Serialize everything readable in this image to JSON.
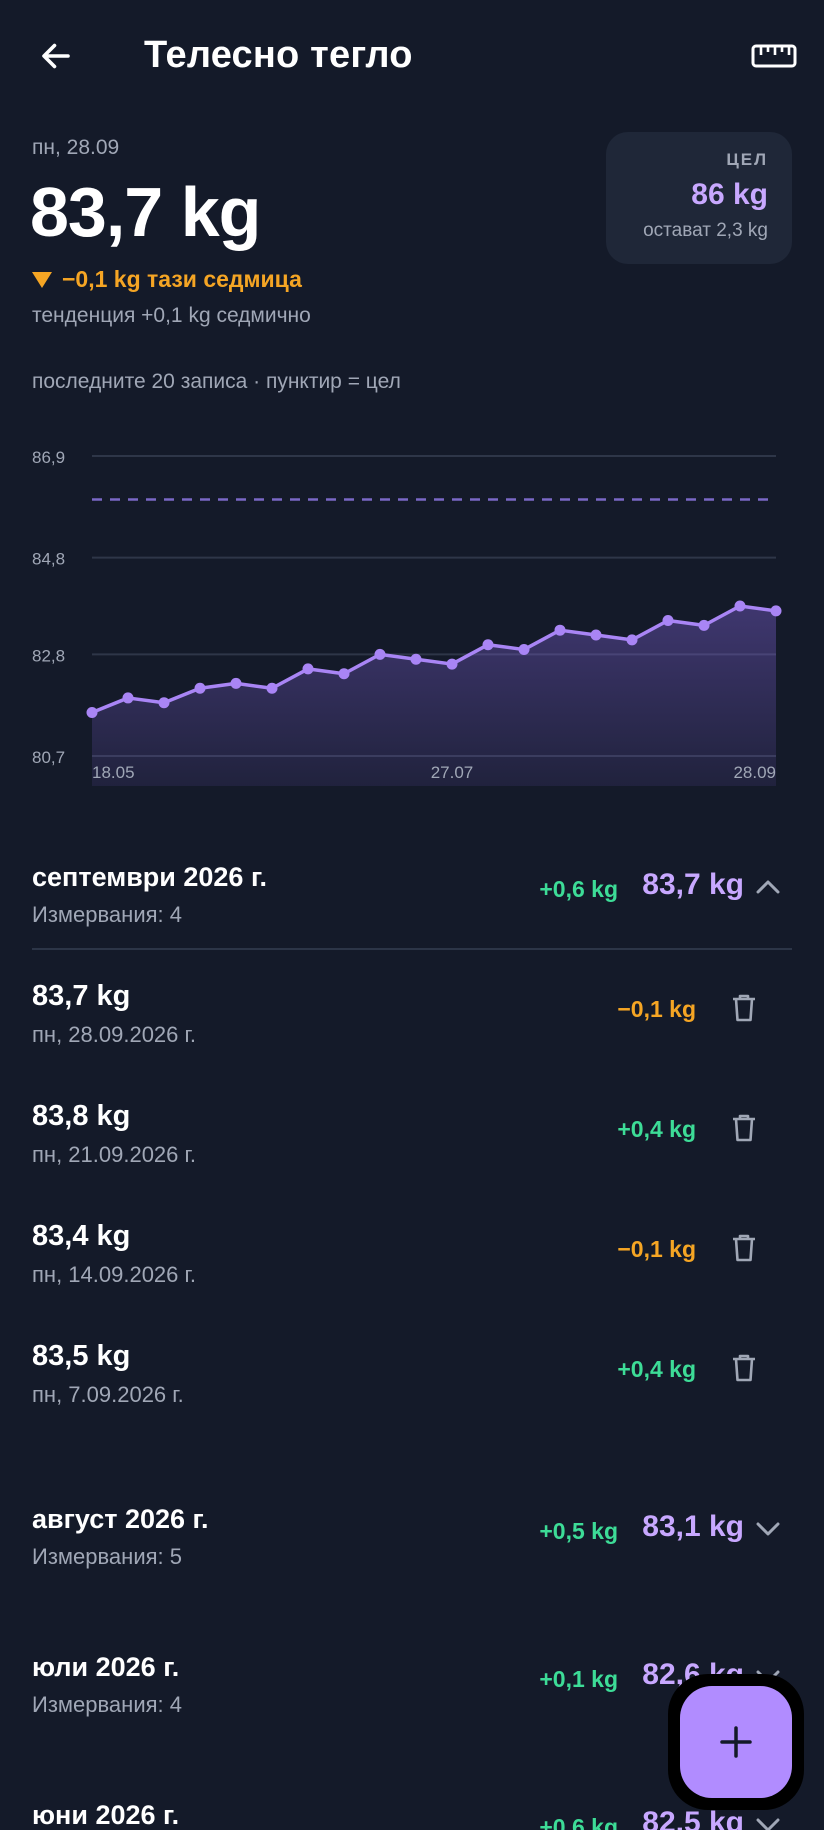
{
  "header": {
    "title": "Телесно тегло",
    "back_icon": "arrow-left-icon",
    "ruler_icon": "ruler-icon"
  },
  "summary": {
    "date": "пн, 28.09",
    "weight": "83,7 kg",
    "week_change": "−0,1 kg тази седмица",
    "trend": "тенденция +0,1 kg седмично"
  },
  "goal": {
    "label": "ЦЕЛ",
    "value": "86 kg",
    "remaining": "остават 2,3 kg"
  },
  "chart_caption": "последните 20 записа · пунктир = цел",
  "chart_data": {
    "type": "area",
    "y_ticks": [
      "86,9",
      "84,8",
      "82,8",
      "80,7"
    ],
    "ylim": [
      80.7,
      86.9
    ],
    "x_ticks": [
      "18.05",
      "27.07",
      "28.09"
    ],
    "goal": 86.0,
    "values": [
      81.6,
      81.9,
      81.8,
      82.1,
      82.2,
      82.1,
      82.5,
      82.4,
      82.8,
      82.7,
      82.6,
      83.0,
      82.9,
      83.3,
      83.2,
      83.1,
      83.5,
      83.4,
      83.8,
      83.7
    ],
    "colors": {
      "line": "#a985f5",
      "goal": "#7a68c6",
      "grid": "#2e3648"
    }
  },
  "months": [
    {
      "title": "септември 2026 г.",
      "count": "Измервания: 4",
      "delta": "+0,6 kg",
      "avg": "83,7 kg",
      "expanded": true,
      "entries": [
        {
          "weight": "83,7 kg",
          "date": "пн, 28.09.2026 г.",
          "delta": "−0,1 kg",
          "dir": "down"
        },
        {
          "weight": "83,8 kg",
          "date": "пн, 21.09.2026 г.",
          "delta": "+0,4 kg",
          "dir": "up"
        },
        {
          "weight": "83,4 kg",
          "date": "пн, 14.09.2026 г.",
          "delta": "−0,1 kg",
          "dir": "down"
        },
        {
          "weight": "83,5 kg",
          "date": "пн, 7.09.2026 г.",
          "delta": "+0,4 kg",
          "dir": "up"
        }
      ]
    },
    {
      "title": "август 2026 г.",
      "count": "Измервания: 5",
      "delta": "+0,5 kg",
      "avg": "83,1 kg",
      "expanded": false
    },
    {
      "title": "юли 2026 г.",
      "count": "Измервания: 4",
      "delta": "+0,1 kg",
      "avg": "82,6 kg",
      "expanded": false
    },
    {
      "title": "юни 2026 г.",
      "count": "",
      "delta": "+0,6 kg",
      "avg": "82,5 kg",
      "expanded": false
    }
  ],
  "fab": {
    "icon": "plus-icon"
  }
}
